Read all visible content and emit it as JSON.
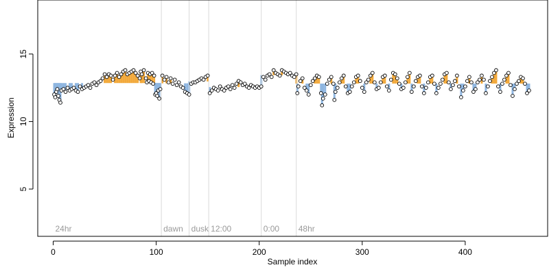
{
  "chart_data": {
    "type": "scatter",
    "title": "",
    "xlabel": "Sample index",
    "ylabel": "Expression",
    "xlim": [
      -15,
      480
    ],
    "ylim": [
      1.5,
      19
    ],
    "x_ticks": [
      0,
      100,
      200,
      300,
      400
    ],
    "y_ticks": [
      5,
      10,
      15
    ],
    "grid": false,
    "segments": [
      {
        "label": "24hr",
        "start": 0
      },
      {
        "label": "dawn",
        "start": 105
      },
      {
        "label": "dusk",
        "start": 132
      },
      {
        "label": "12:00",
        "start": 151
      },
      {
        "label": "0:00",
        "start": 202
      },
      {
        "label": "48hr",
        "start": 236
      }
    ],
    "colors": {
      "point_fill": "#ffffff",
      "point_stroke": "#000000",
      "bar_above": "#f2a93b",
      "bar_below": "#8fb6e0",
      "separator": "#d9d9d9",
      "segment_text": "#999999"
    },
    "points": [
      [
        1,
        12.0
      ],
      [
        2,
        11.8
      ],
      [
        3,
        12.2
      ],
      [
        4,
        12.4
      ],
      [
        5,
        11.9
      ],
      [
        6,
        11.6
      ],
      [
        7,
        11.4
      ],
      [
        8,
        12.3
      ],
      [
        10,
        12.4
      ],
      [
        12,
        12.2
      ],
      [
        14,
        12.5
      ],
      [
        16,
        12.3
      ],
      [
        18,
        12.4
      ],
      [
        20,
        12.5
      ],
      [
        22,
        12.3
      ],
      [
        24,
        12.2
      ],
      [
        26,
        12.6
      ],
      [
        28,
        12.4
      ],
      [
        30,
        12.5
      ],
      [
        32,
        12.6
      ],
      [
        34,
        12.7
      ],
      [
        36,
        12.5
      ],
      [
        38,
        12.8
      ],
      [
        40,
        12.9
      ],
      [
        42,
        12.7
      ],
      [
        44,
        12.9
      ],
      [
        46,
        13.0
      ],
      [
        48,
        13.2
      ],
      [
        50,
        13.5
      ],
      [
        52,
        13.3
      ],
      [
        54,
        13.5
      ],
      [
        56,
        13.4
      ],
      [
        58,
        13.1
      ],
      [
        60,
        13.4
      ],
      [
        62,
        13.6
      ],
      [
        64,
        13.3
      ],
      [
        66,
        13.5
      ],
      [
        68,
        13.7
      ],
      [
        70,
        13.8
      ],
      [
        72,
        13.5
      ],
      [
        74,
        13.6
      ],
      [
        76,
        13.7
      ],
      [
        78,
        13.8
      ],
      [
        80,
        13.6
      ],
      [
        82,
        13.4
      ],
      [
        84,
        13.2
      ],
      [
        85,
        13.7
      ],
      [
        86,
        13.5
      ],
      [
        88,
        13.8
      ],
      [
        90,
        13.2
      ],
      [
        91,
        12.9
      ],
      [
        92,
        13.6
      ],
      [
        93,
        13.0
      ],
      [
        94,
        13.5
      ],
      [
        95,
        12.9
      ],
      [
        96,
        13.6
      ],
      [
        97,
        12.8
      ],
      [
        98,
        13.4
      ],
      [
        99,
        12.0
      ],
      [
        100,
        12.1
      ],
      [
        101,
        11.9
      ],
      [
        102,
        12.3
      ],
      [
        103,
        11.7
      ],
      [
        104,
        12.4
      ],
      [
        106,
        13.4
      ],
      [
        108,
        13.1
      ],
      [
        110,
        13.3
      ],
      [
        112,
        12.9
      ],
      [
        114,
        13.2
      ],
      [
        116,
        12.8
      ],
      [
        118,
        13.1
      ],
      [
        120,
        12.7
      ],
      [
        122,
        12.9
      ],
      [
        124,
        12.6
      ],
      [
        126,
        12.5
      ],
      [
        128,
        12.2
      ],
      [
        130,
        12.1
      ],
      [
        132,
        12.0
      ],
      [
        134,
        12.8
      ],
      [
        136,
        12.9
      ],
      [
        138,
        12.9
      ],
      [
        140,
        13.0
      ],
      [
        142,
        13.1
      ],
      [
        144,
        13.2
      ],
      [
        146,
        13.1
      ],
      [
        148,
        13.3
      ],
      [
        150,
        13.4
      ],
      [
        152,
        12.1
      ],
      [
        154,
        12.3
      ],
      [
        156,
        12.5
      ],
      [
        158,
        12.4
      ],
      [
        160,
        12.3
      ],
      [
        162,
        12.6
      ],
      [
        164,
        12.4
      ],
      [
        166,
        12.3
      ],
      [
        168,
        12.5
      ],
      [
        170,
        12.6
      ],
      [
        172,
        12.4
      ],
      [
        174,
        12.7
      ],
      [
        176,
        12.5
      ],
      [
        178,
        12.8
      ],
      [
        180,
        13.0
      ],
      [
        182,
        12.9
      ],
      [
        184,
        12.7
      ],
      [
        186,
        12.8
      ],
      [
        188,
        12.6
      ],
      [
        190,
        12.5
      ],
      [
        192,
        12.7
      ],
      [
        194,
        12.6
      ],
      [
        196,
        12.5
      ],
      [
        198,
        12.6
      ],
      [
        200,
        12.5
      ],
      [
        202,
        12.6
      ],
      [
        204,
        13.3
      ],
      [
        206,
        13.1
      ],
      [
        208,
        13.4
      ],
      [
        210,
        13.5
      ],
      [
        212,
        13.3
      ],
      [
        214,
        13.8
      ],
      [
        216,
        13.6
      ],
      [
        218,
        13.5
      ],
      [
        220,
        13.4
      ],
      [
        222,
        13.8
      ],
      [
        224,
        13.7
      ],
      [
        226,
        13.6
      ],
      [
        228,
        13.5
      ],
      [
        230,
        13.6
      ],
      [
        232,
        13.4
      ],
      [
        234,
        13.3
      ],
      [
        236,
        13.5
      ],
      [
        237,
        12.1
      ],
      [
        238,
        12.6
      ],
      [
        240,
        13.0
      ],
      [
        242,
        13.2
      ],
      [
        244,
        12.5
      ],
      [
        246,
        12.3
      ],
      [
        248,
        12.0
      ],
      [
        250,
        12.7
      ],
      [
        252,
        13.0
      ],
      [
        254,
        13.2
      ],
      [
        256,
        13.4
      ],
      [
        258,
        13.3
      ],
      [
        260,
        12.1
      ],
      [
        261,
        11.2
      ],
      [
        262,
        11.7
      ],
      [
        264,
        12.0
      ],
      [
        266,
        12.8
      ],
      [
        268,
        13.1
      ],
      [
        270,
        13.3
      ],
      [
        272,
        12.8
      ],
      [
        273,
        11.6
      ],
      [
        274,
        12.2
      ],
      [
        276,
        12.5
      ],
      [
        278,
        12.9
      ],
      [
        280,
        13.2
      ],
      [
        282,
        13.4
      ],
      [
        284,
        12.6
      ],
      [
        286,
        12.1
      ],
      [
        288,
        12.2
      ],
      [
        290,
        12.6
      ],
      [
        292,
        12.9
      ],
      [
        294,
        13.3
      ],
      [
        296,
        13.4
      ],
      [
        298,
        13.0
      ],
      [
        300,
        12.5
      ],
      [
        302,
        12.2
      ],
      [
        304,
        12.9
      ],
      [
        306,
        13.1
      ],
      [
        308,
        13.4
      ],
      [
        310,
        13.6
      ],
      [
        312,
        12.9
      ],
      [
        314,
        12.4
      ],
      [
        316,
        12.5
      ],
      [
        318,
        12.9
      ],
      [
        320,
        13.3
      ],
      [
        322,
        13.4
      ],
      [
        324,
        12.6
      ],
      [
        326,
        12.3
      ],
      [
        328,
        13.1
      ],
      [
        330,
        13.6
      ],
      [
        332,
        13.5
      ],
      [
        334,
        13.2
      ],
      [
        336,
        12.8
      ],
      [
        338,
        12.4
      ],
      [
        340,
        12.5
      ],
      [
        342,
        12.9
      ],
      [
        344,
        13.3
      ],
      [
        346,
        13.6
      ],
      [
        348,
        12.2
      ],
      [
        350,
        12.6
      ],
      [
        352,
        13.0
      ],
      [
        354,
        13.3
      ],
      [
        356,
        13.4
      ],
      [
        358,
        12.6
      ],
      [
        360,
        12.1
      ],
      [
        362,
        12.5
      ],
      [
        364,
        12.9
      ],
      [
        366,
        13.3
      ],
      [
        368,
        13.4
      ],
      [
        370,
        12.8
      ],
      [
        372,
        12.1
      ],
      [
        374,
        12.5
      ],
      [
        376,
        12.8
      ],
      [
        378,
        13.1
      ],
      [
        380,
        13.5
      ],
      [
        382,
        13.6
      ],
      [
        384,
        12.9
      ],
      [
        386,
        12.4
      ],
      [
        388,
        12.7
      ],
      [
        390,
        13.0
      ],
      [
        392,
        13.4
      ],
      [
        394,
        12.6
      ],
      [
        396,
        11.8
      ],
      [
        398,
        12.3
      ],
      [
        400,
        12.6
      ],
      [
        402,
        13.0
      ],
      [
        404,
        13.3
      ],
      [
        406,
        12.9
      ],
      [
        408,
        12.2
      ],
      [
        410,
        12.4
      ],
      [
        412,
        12.9
      ],
      [
        414,
        13.1
      ],
      [
        416,
        13.4
      ],
      [
        418,
        13.1
      ],
      [
        420,
        12.1
      ],
      [
        422,
        12.6
      ],
      [
        424,
        13.0
      ],
      [
        426,
        13.3
      ],
      [
        428,
        13.6
      ],
      [
        430,
        13.8
      ],
      [
        432,
        12.6
      ],
      [
        434,
        12.2
      ],
      [
        436,
        12.8
      ],
      [
        438,
        13.1
      ],
      [
        440,
        13.4
      ],
      [
        442,
        13.6
      ],
      [
        444,
        12.7
      ],
      [
        446,
        11.9
      ],
      [
        448,
        12.4
      ],
      [
        450,
        12.8
      ],
      [
        452,
        13.0
      ],
      [
        454,
        13.3
      ],
      [
        456,
        13.2
      ],
      [
        458,
        12.8
      ],
      [
        460,
        12.1
      ],
      [
        462,
        12.3
      ]
    ]
  }
}
